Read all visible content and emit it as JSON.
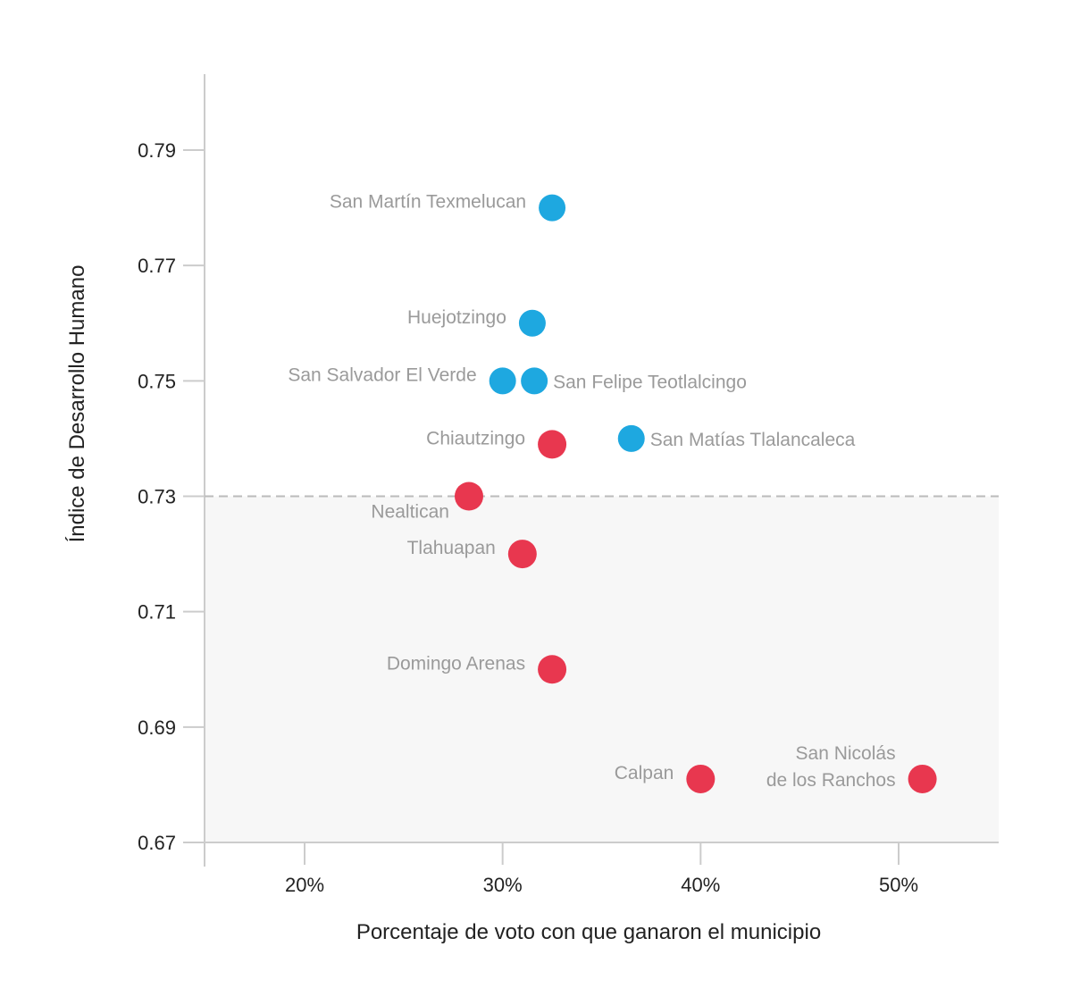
{
  "chart_data": {
    "type": "scatter",
    "xlabel": "Porcentaje de voto con que ganaron el municipio",
    "ylabel": "Índice de Desarrollo Humano",
    "xlim": [
      15,
      55
    ],
    "ylim": [
      0.67,
      0.8
    ],
    "x_ticks": [
      20,
      30,
      40,
      50
    ],
    "x_tick_labels": [
      "20%",
      "30%",
      "40%",
      "50%"
    ],
    "y_ticks": [
      0.67,
      0.69,
      0.71,
      0.73,
      0.75,
      0.77,
      0.79
    ],
    "y_tick_labels": [
      "0.67",
      "0.69",
      "0.71",
      "0.73",
      "0.75",
      "0.77",
      "0.79"
    ],
    "threshold_y": 0.73,
    "colors": {
      "blue": "#1ea8e0",
      "red": "#e8374f",
      "shade": "#f7f7f7",
      "axis": "#cccccc",
      "dash": "#bbbbbb"
    },
    "points": [
      {
        "label": [
          "San Martín Texmelucan"
        ],
        "x": 32.5,
        "y": 0.78,
        "color": "blue",
        "anchor": "left"
      },
      {
        "label": [
          "Huejotzingo"
        ],
        "x": 31.5,
        "y": 0.76,
        "color": "blue",
        "anchor": "left"
      },
      {
        "label": [
          "San Salvador El Verde"
        ],
        "x": 30.0,
        "y": 0.75,
        "color": "blue",
        "anchor": "left"
      },
      {
        "label": [
          "San Felipe Teotlalcingo"
        ],
        "x": 31.6,
        "y": 0.75,
        "color": "blue",
        "anchor": "right"
      },
      {
        "label": [
          "San Matías Tlalancaleca"
        ],
        "x": 36.5,
        "y": 0.74,
        "color": "blue",
        "anchor": "right"
      },
      {
        "label": [
          "Chiautzingo"
        ],
        "x": 32.5,
        "y": 0.739,
        "color": "red",
        "anchor": "left"
      },
      {
        "label": [
          "Nealtican"
        ],
        "x": 28.3,
        "y": 0.73,
        "color": "red",
        "anchor": "below-left"
      },
      {
        "label": [
          "Tlahuapan"
        ],
        "x": 31.0,
        "y": 0.72,
        "color": "red",
        "anchor": "left"
      },
      {
        "label": [
          "Domingo Arenas"
        ],
        "x": 32.5,
        "y": 0.7,
        "color": "red",
        "anchor": "left"
      },
      {
        "label": [
          "Calpan"
        ],
        "x": 40.0,
        "y": 0.681,
        "color": "red",
        "anchor": "left"
      },
      {
        "label": [
          "San Nicolás",
          "de los Ranchos"
        ],
        "x": 51.2,
        "y": 0.681,
        "color": "red",
        "anchor": "left"
      }
    ]
  }
}
